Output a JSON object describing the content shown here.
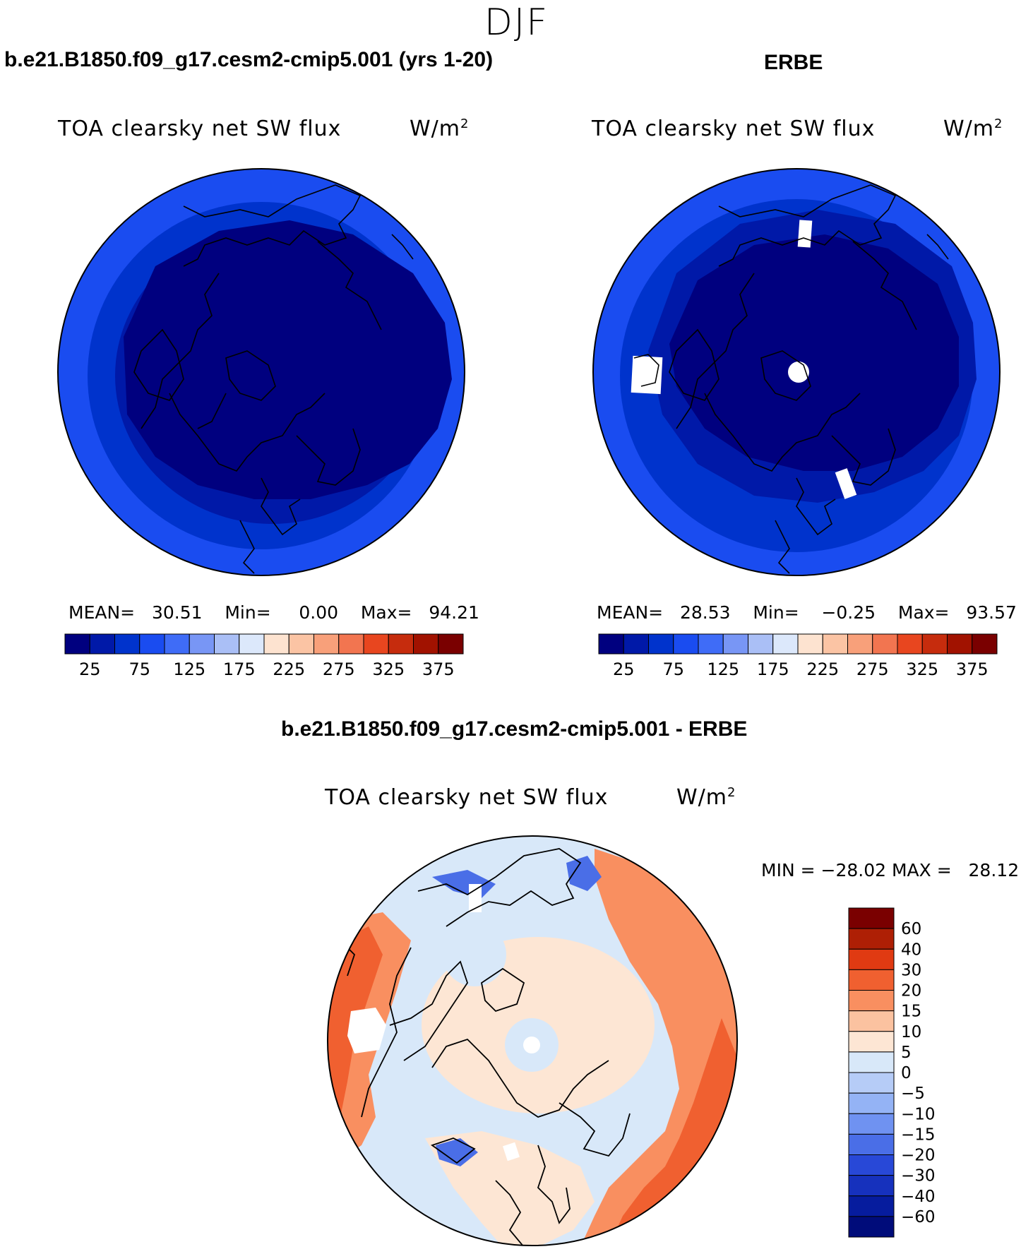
{
  "season": "DJF",
  "panels": {
    "left": {
      "case_title": "b.e21.B1850.f09_g17.cesm2-cmip5.001 (yrs 1-20)",
      "field_title": "TOA clearsky net SW flux",
      "units_base": "W/m",
      "units_sup": "2",
      "mean_label": "MEAN=",
      "mean_value": "30.51",
      "min_label": "Min=",
      "min_value": "0.00",
      "max_label": "Max=",
      "max_value": "94.21"
    },
    "right": {
      "case_title": "ERBE",
      "field_title": "TOA clearsky net SW flux",
      "units_base": "W/m",
      "units_sup": "2",
      "mean_label": "MEAN=",
      "mean_value": "28.53",
      "min_label": "Min=",
      "min_value": "−0.25",
      "max_label": "Max=",
      "max_value": "93.57"
    },
    "diff": {
      "case_title": "b.e21.B1850.f09_g17.cesm2-cmip5.001 - ERBE",
      "field_title": "TOA clearsky net SW flux",
      "units_base": "W/m",
      "units_sup": "2",
      "min_label": "MIN =",
      "min_value": "−28.02",
      "max_label": "MAX =",
      "max_value": "28.12"
    }
  },
  "abs_colorbar": {
    "colors": [
      "#00007f",
      "#0019a8",
      "#0033cc",
      "#1a4cf0",
      "#3f6cf7",
      "#7896f5",
      "#aabff6",
      "#dce8fb",
      "#fde3d0",
      "#fbc4a4",
      "#f8a07a",
      "#f27550",
      "#e8461f",
      "#c62c0d",
      "#a11200",
      "#7a0000"
    ],
    "tick_labels": [
      "25",
      "75",
      "125",
      "175",
      "225",
      "275",
      "325",
      "375"
    ]
  },
  "diff_colorbar": {
    "colors": [
      "#7a0000",
      "#ae1f05",
      "#e03a12",
      "#f06030",
      "#f98f60",
      "#fbc2a0",
      "#fde6d4",
      "#d8e8f9",
      "#b6ccf7",
      "#94b3f5",
      "#6f92f1",
      "#4a6ee7",
      "#2848d7",
      "#1631bd",
      "#061c9e",
      "#000c7a"
    ],
    "tick_labels": [
      "60",
      "40",
      "30",
      "20",
      "15",
      "10",
      "5",
      "0",
      "−5",
      "−10",
      "−15",
      "−20",
      "−30",
      "−40",
      "−60"
    ]
  },
  "map_colors": {
    "abs_outer": "#1a4cf0",
    "abs_mid": "#0033cc",
    "abs_inner": "#0019a8",
    "abs_core": "#00007f",
    "diff_base": "#d8e8f9",
    "diff_light_red": "#fde6d4",
    "diff_red": "#f06030",
    "diff_mid_red": "#f98f60",
    "diff_blue": "#4a6ee7",
    "missing": "#ffffff"
  }
}
